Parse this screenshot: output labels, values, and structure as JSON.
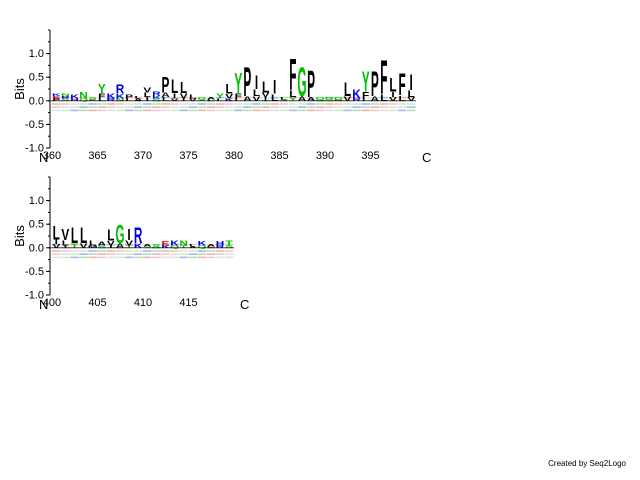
{
  "credit": "Created by Seq2Logo",
  "chart_data": [
    {
      "type": "logo",
      "ylabel": "Bits",
      "ylim": [
        -1.0,
        1.5
      ],
      "yticks": [
        "-1.0",
        "-0.5",
        "0.0",
        "0.5",
        "1.0"
      ],
      "n_label": "N",
      "c_label": "C",
      "xtick_labels": [
        "360",
        "365",
        "370",
        "375",
        "380",
        "385",
        "390",
        "395"
      ],
      "first_position": 360,
      "stacks": [
        {
          "pos": 360,
          "up": [
            [
              "P",
              0.05
            ],
            [
              "E",
              0.05
            ],
            [
              "K",
              0.05
            ]
          ]
        },
        {
          "pos": 361,
          "up": [
            [
              "S",
              0.05
            ],
            [
              "R",
              0.05
            ],
            [
              "N",
              0.05
            ]
          ]
        },
        {
          "pos": 362,
          "up": [
            [
              "K",
              0.08
            ],
            [
              "H",
              0.05
            ]
          ]
        },
        {
          "pos": 363,
          "up": [
            [
              "N",
              0.15
            ],
            [
              "Q",
              0.05
            ]
          ]
        },
        {
          "pos": 364,
          "up": [
            [
              "S",
              0.05
            ],
            [
              "E",
              0.03
            ]
          ]
        },
        {
          "pos": 365,
          "up": [
            [
              "Y",
              0.2
            ],
            [
              "F",
              0.12
            ],
            [
              "L",
              0.05
            ]
          ]
        },
        {
          "pos": 366,
          "up": [
            [
              "K",
              0.12
            ],
            [
              "R",
              0.05
            ]
          ]
        },
        {
          "pos": 367,
          "up": [
            [
              "R",
              0.2
            ],
            [
              "K",
              0.1
            ],
            [
              "N",
              0.05
            ]
          ]
        },
        {
          "pos": 368,
          "up": [
            [
              "P",
              0.08
            ],
            [
              "L",
              0.05
            ]
          ]
        },
        {
          "pos": 369,
          "up": [
            [
              "A",
              0.05
            ],
            [
              "L",
              0.05
            ]
          ]
        },
        {
          "pos": 370,
          "up": [
            [
              "V",
              0.12
            ],
            [
              "L",
              0.1
            ],
            [
              "I",
              0.08
            ]
          ]
        },
        {
          "pos": 371,
          "up": [
            [
              "R",
              0.1
            ],
            [
              "S",
              0.05
            ],
            [
              "K",
              0.05
            ]
          ]
        },
        {
          "pos": 372,
          "up": [
            [
              "P",
              0.35
            ],
            [
              "A",
              0.1
            ],
            [
              "L",
              0.08
            ]
          ]
        },
        {
          "pos": 373,
          "up": [
            [
              "L",
              0.3
            ],
            [
              "I",
              0.12
            ],
            [
              "V",
              0.05
            ]
          ]
        },
        {
          "pos": 374,
          "up": [
            [
              "L",
              0.25
            ],
            [
              "V",
              0.12
            ],
            [
              "I",
              0.05
            ]
          ]
        },
        {
          "pos": 375,
          "up": [
            [
              "L",
              0.08
            ],
            [
              "V",
              0.05
            ]
          ]
        },
        {
          "pos": 376,
          "up": [
            [
              "G",
              0.05
            ],
            [
              "S",
              0.03
            ]
          ]
        },
        {
          "pos": 377,
          "up": [
            [
              "A",
              0.05
            ],
            [
              "L",
              0.03
            ]
          ]
        },
        {
          "pos": 378,
          "up": [
            [
              "Y",
              0.12
            ],
            [
              "L",
              0.05
            ]
          ]
        },
        {
          "pos": 379,
          "up": [
            [
              "L",
              0.22
            ],
            [
              "V",
              0.1
            ],
            [
              "K",
              0.05
            ]
          ]
        },
        {
          "pos": 380,
          "up": [
            [
              "Y",
              0.45
            ],
            [
              "F",
              0.12
            ],
            [
              "L",
              0.05
            ]
          ]
        },
        {
          "pos": 381,
          "up": [
            [
              "P",
              0.65
            ],
            [
              "A",
              0.1
            ]
          ]
        },
        {
          "pos": 382,
          "up": [
            [
              "I",
              0.3
            ],
            [
              "L",
              0.15
            ],
            [
              "V",
              0.1
            ]
          ]
        },
        {
          "pos": 383,
          "up": [
            [
              "L",
              0.25
            ],
            [
              "V",
              0.1
            ],
            [
              "I",
              0.08
            ]
          ]
        },
        {
          "pos": 384,
          "up": [
            [
              "I",
              0.3
            ],
            [
              "L",
              0.15
            ]
          ]
        },
        {
          "pos": 385,
          "up": [
            [
              "L",
              0.05
            ],
            [
              "S",
              0.03
            ]
          ]
        },
        {
          "pos": 386,
          "up": [
            [
              "F",
              0.7
            ],
            [
              "L",
              0.15
            ],
            [
              "Y",
              0.08
            ]
          ]
        },
        {
          "pos": 387,
          "up": [
            [
              "G",
              0.65
            ],
            [
              "A",
              0.1
            ]
          ]
        },
        {
          "pos": 388,
          "up": [
            [
              "P",
              0.6
            ],
            [
              "A",
              0.08
            ]
          ]
        },
        {
          "pos": 389,
          "up": [
            [
              "Q",
              0.05
            ],
            [
              "G",
              0.03
            ]
          ]
        },
        {
          "pos": 390,
          "up": [
            [
              "G",
              0.05
            ],
            [
              "Q",
              0.03
            ]
          ]
        },
        {
          "pos": 391,
          "up": [
            [
              "Q",
              0.05
            ],
            [
              "D",
              0.03
            ]
          ]
        },
        {
          "pos": 392,
          "up": [
            [
              "L",
              0.3
            ],
            [
              "V",
              0.1
            ]
          ]
        },
        {
          "pos": 393,
          "up": [
            [
              "K",
              0.2
            ],
            [
              "R",
              0.05
            ]
          ]
        },
        {
          "pos": 394,
          "up": [
            [
              "Y",
              0.45
            ],
            [
              "F",
              0.15
            ],
            [
              "L",
              0.05
            ]
          ]
        },
        {
          "pos": 395,
          "up": [
            [
              "P",
              0.55
            ],
            [
              "A",
              0.1
            ]
          ]
        },
        {
          "pos": 396,
          "up": [
            [
              "F",
              0.75
            ],
            [
              "L",
              0.15
            ]
          ]
        },
        {
          "pos": 397,
          "up": [
            [
              "L",
              0.3
            ],
            [
              "I",
              0.12
            ],
            [
              "V",
              0.08
            ]
          ]
        },
        {
          "pos": 398,
          "up": [
            [
              "F",
              0.5
            ],
            [
              "L",
              0.12
            ]
          ]
        },
        {
          "pos": 399,
          "up": [
            [
              "I",
              0.35
            ],
            [
              "L",
              0.15
            ],
            [
              "V",
              0.08
            ]
          ]
        }
      ]
    },
    {
      "type": "logo",
      "ylabel": "Bits",
      "ylim": [
        -1.0,
        1.5
      ],
      "yticks": [
        "-1.0",
        "-0.5",
        "0.0",
        "0.5",
        "1.0"
      ],
      "n_label": "N",
      "c_label": "C",
      "xtick_labels": [
        "400",
        "405",
        "410",
        "415"
      ],
      "first_position": 400,
      "stacks": [
        {
          "pos": 400,
          "up": [
            [
              "L",
              0.3
            ],
            [
              "I",
              0.1
            ],
            [
              "V",
              0.08
            ]
          ]
        },
        {
          "pos": 401,
          "up": [
            [
              "V",
              0.25
            ],
            [
              "L",
              0.12
            ],
            [
              "I",
              0.05
            ]
          ]
        },
        {
          "pos": 402,
          "up": [
            [
              "L",
              0.35
            ],
            [
              "T",
              0.1
            ]
          ]
        },
        {
          "pos": 403,
          "up": [
            [
              "L",
              0.35
            ],
            [
              "V",
              0.1
            ]
          ]
        },
        {
          "pos": 404,
          "up": [
            [
              "L",
              0.12
            ],
            [
              "M",
              0.05
            ]
          ]
        },
        {
          "pos": 405,
          "up": [
            [
              "A",
              0.08
            ],
            [
              "S",
              0.05
            ]
          ]
        },
        {
          "pos": 406,
          "up": [
            [
              "L",
              0.25
            ],
            [
              "V",
              0.1
            ],
            [
              "I",
              0.05
            ]
          ]
        },
        {
          "pos": 407,
          "up": [
            [
              "G",
              0.4
            ],
            [
              "A",
              0.1
            ]
          ]
        },
        {
          "pos": 408,
          "up": [
            [
              "I",
              0.25
            ],
            [
              "V",
              0.12
            ],
            [
              "T",
              0.05
            ]
          ]
        },
        {
          "pos": 409,
          "up": [
            [
              "R",
              0.35
            ],
            [
              "K",
              0.1
            ]
          ]
        },
        {
          "pos": 410,
          "up": [
            [
              "A",
              0.05
            ],
            [
              "S",
              0.03
            ]
          ]
        },
        {
          "pos": 411,
          "up": [
            [
              "S",
              0.05
            ],
            [
              "G",
              0.03
            ]
          ]
        },
        {
          "pos": 412,
          "up": [
            [
              "E",
              0.1
            ],
            [
              "K",
              0.05
            ]
          ]
        },
        {
          "pos": 413,
          "up": [
            [
              "K",
              0.12
            ],
            [
              "Q",
              0.05
            ]
          ]
        },
        {
          "pos": 414,
          "up": [
            [
              "N",
              0.12
            ],
            [
              "T",
              0.05
            ]
          ]
        },
        {
          "pos": 415,
          "up": [
            [
              "L",
              0.05
            ],
            [
              "A",
              0.03
            ]
          ]
        },
        {
          "pos": 416,
          "up": [
            [
              "K",
              0.1
            ],
            [
              "Q",
              0.05
            ]
          ]
        },
        {
          "pos": 417,
          "up": [
            [
              "A",
              0.05
            ],
            [
              "E",
              0.03
            ]
          ]
        },
        {
          "pos": 418,
          "up": [
            [
              "H",
              0.1
            ],
            [
              "R",
              0.05
            ]
          ]
        },
        {
          "pos": 419,
          "up": [
            [
              "T",
              0.12
            ],
            [
              "S",
              0.05
            ]
          ]
        }
      ]
    }
  ]
}
